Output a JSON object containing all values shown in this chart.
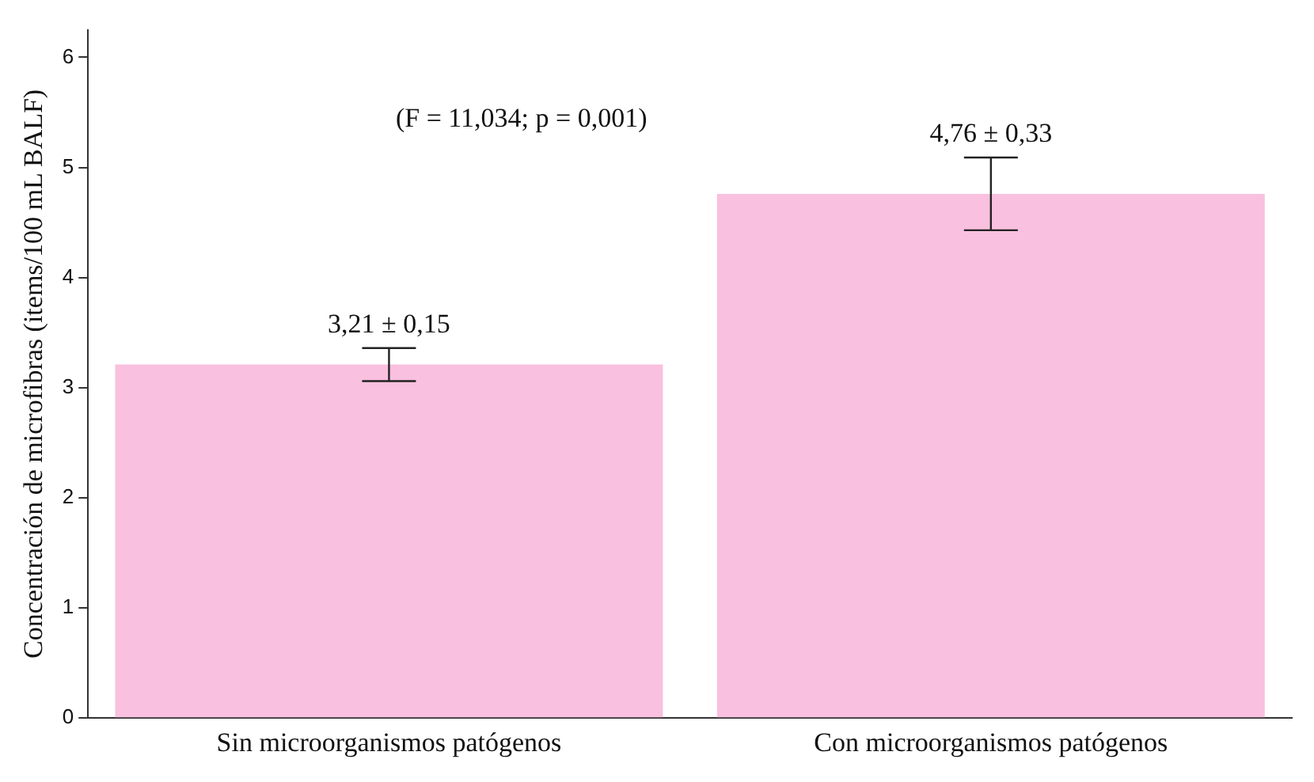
{
  "chart_data": {
    "type": "bar",
    "ylabel": "Concentración de microfibras (items/100 mL BALF)",
    "categories": [
      "Sin microorganismos patógenos",
      "Con microorganismos patógenos"
    ],
    "values": [
      3.21,
      4.76
    ],
    "errors": [
      0.15,
      0.33
    ],
    "value_labels": [
      "3,21 ± 0,15",
      "4,76 ± 0,33"
    ],
    "color": "#f9c0df",
    "ylim": [
      0,
      6.25
    ],
    "yticks": [
      0,
      1,
      2,
      3,
      4,
      5,
      6
    ],
    "annotations": [
      "(F = 11,034; p = 0,001)"
    ],
    "grid": false,
    "legend": false
  }
}
